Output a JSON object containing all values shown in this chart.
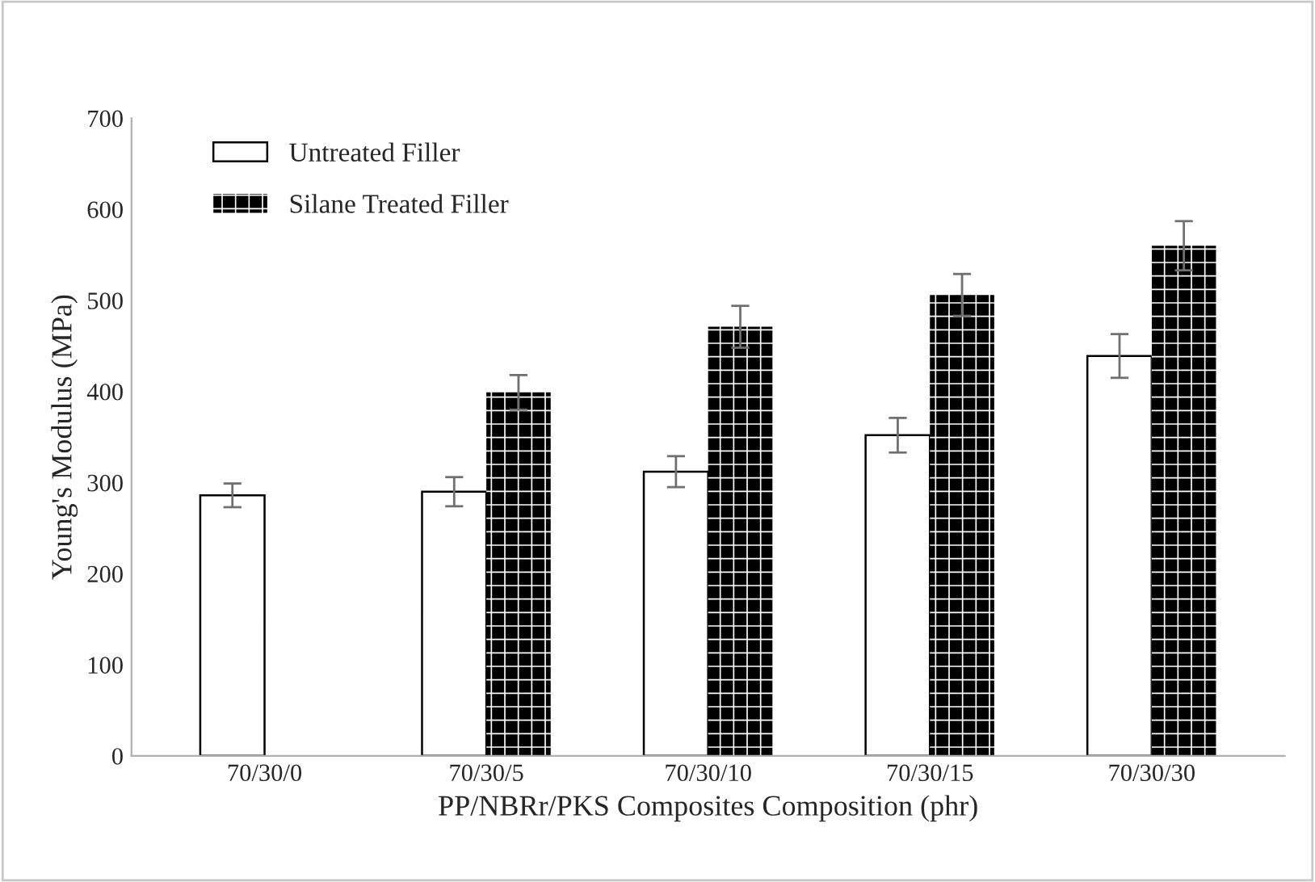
{
  "chart_data": {
    "type": "bar",
    "xlabel": "PP/NBRr/PKS Composites Composition (phr)",
    "ylabel": "Young's Modulus (MPa)",
    "categories": [
      "70/30/0",
      "70/30/5",
      "70/30/10",
      "70/30/15",
      "70/30/30"
    ],
    "series": [
      {
        "name": "Untreated Filler",
        "color": "#ffffff",
        "values": [
          286,
          290,
          312,
          352,
          439
        ],
        "errors": [
          13,
          16,
          17,
          19,
          24
        ]
      },
      {
        "name": "Silane Treated Filler",
        "color": "#000000",
        "values": [
          null,
          399,
          471,
          506,
          560
        ],
        "errors": [
          null,
          19,
          23,
          23,
          27
        ]
      }
    ],
    "ylim": [
      0,
      700
    ],
    "yticks": [
      0,
      100,
      200,
      300,
      400,
      500,
      600,
      700
    ],
    "grid": false,
    "legend": "top left"
  }
}
